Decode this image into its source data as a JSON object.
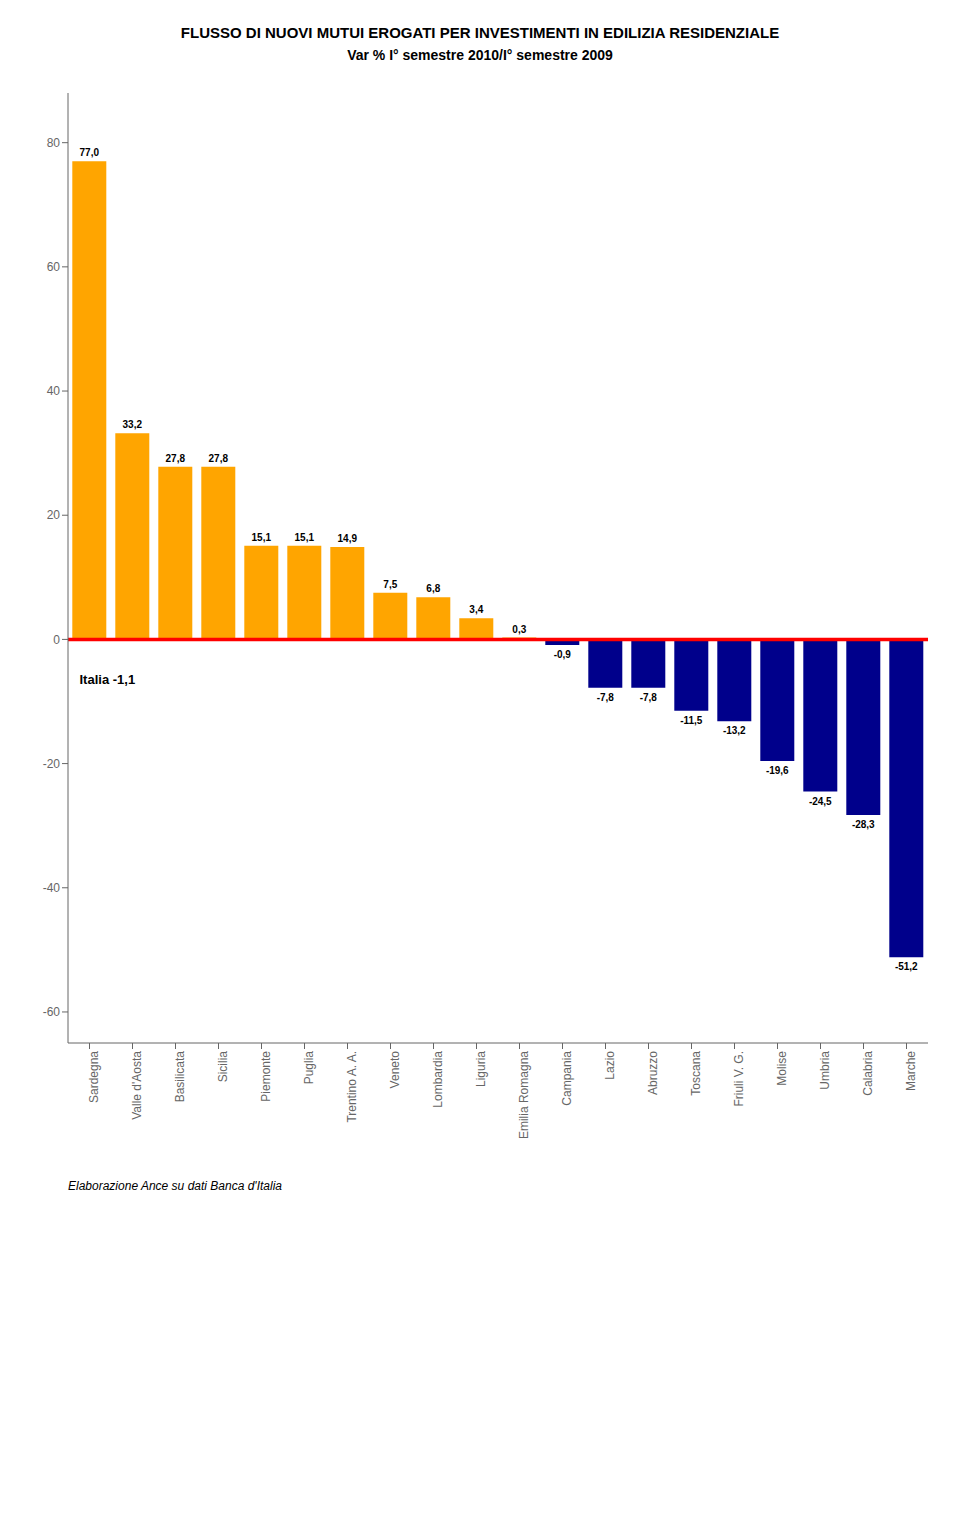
{
  "chart_data": {
    "type": "bar",
    "title": "FLUSSO DI NUOVI MUTUI EROGATI PER INVESTIMENTI IN EDILIZIA RESIDENZIALE",
    "subtitle": "Var % I° semestre 2010/I° semestre 2009",
    "categories": [
      "Sardegna",
      "Valle d'Aosta",
      "Basilicata",
      "Sicilia",
      "Piemonte",
      "Puglia",
      "Trentino A. A.",
      "Veneto",
      "Lombardia",
      "Liguria",
      "Emilia Romagna",
      "Campania",
      "Lazio",
      "Abruzzo",
      "Toscana",
      "Friuli V. G.",
      "Molise",
      "Umbria",
      "Calabria",
      "Marche"
    ],
    "values": [
      77.0,
      33.2,
      27.8,
      27.8,
      15.1,
      15.1,
      14.9,
      7.5,
      6.8,
      3.4,
      0.3,
      -0.9,
      -7.8,
      -7.8,
      -11.5,
      -13.2,
      -19.6,
      -24.5,
      -28.3,
      -51.2
    ],
    "value_labels": [
      "77,0",
      "33,2",
      "27,8",
      "27,8",
      "15,1",
      "15,1",
      "14,9",
      "7,5",
      "6,8",
      "3,4",
      "0,3",
      "-0,9",
      "-7,8",
      "-7,8",
      "-11,5",
      "-13,2",
      "-19,6",
      "-24,5",
      "-28,3",
      "-51,2"
    ],
    "colors": [
      "#FFA500",
      "#FFA500",
      "#FFA500",
      "#FFA500",
      "#FFA500",
      "#FFA500",
      "#FFA500",
      "#FFA500",
      "#FFA500",
      "#FFA500",
      "#FFA500",
      "#00008B",
      "#00008B",
      "#00008B",
      "#00008B",
      "#00008B",
      "#00008B",
      "#00008B",
      "#00008B",
      "#00008B"
    ],
    "data_labels": true,
    "ylim": [
      -65,
      88
    ],
    "yticks": [
      80,
      60,
      40,
      20,
      0,
      -20,
      -40,
      -60
    ],
    "grid": false,
    "reference_lines": [
      {
        "value": 0,
        "color": "#FF0000"
      }
    ],
    "annotations": [
      {
        "text": "Italia -1,1",
        "value": -1.1
      }
    ],
    "source": "Elaborazione Ance su dati Banca d'Italia"
  }
}
